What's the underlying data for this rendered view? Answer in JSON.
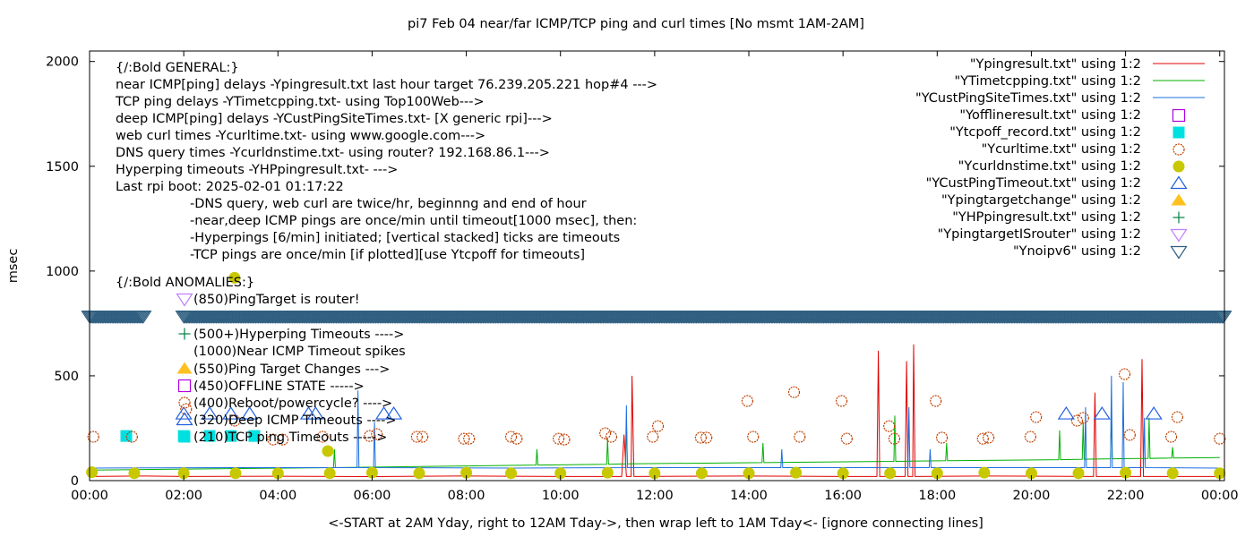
{
  "chart_data": {
    "type": "line",
    "title": "pi7 Feb 04  near/far ICMP/TCP ping and curl times [No msmt 1AM-2AM]",
    "xlabel": "<-START at 2AM Yday, right to 12AM Tday->, then wrap left to 1AM Tday<- [ignore connecting lines]",
    "ylabel": "msec",
    "xlim": [
      0,
      24.1
    ],
    "ylim": [
      0,
      2050
    ],
    "x_unit": "hours of day",
    "xticks": [
      {
        "v": 0,
        "label": "00:00"
      },
      {
        "v": 2,
        "label": "02:00"
      },
      {
        "v": 4,
        "label": "04:00"
      },
      {
        "v": 6,
        "label": "06:00"
      },
      {
        "v": 8,
        "label": "08:00"
      },
      {
        "v": 10,
        "label": "10:00"
      },
      {
        "v": 12,
        "label": "12:00"
      },
      {
        "v": 14,
        "label": "14:00"
      },
      {
        "v": 16,
        "label": "16:00"
      },
      {
        "v": 18,
        "label": "18:00"
      },
      {
        "v": 20,
        "label": "20:00"
      },
      {
        "v": 22,
        "label": "22:00"
      },
      {
        "v": 24,
        "label": "00:00"
      }
    ],
    "yticks": [
      {
        "v": 0,
        "label": "0"
      },
      {
        "v": 500,
        "label": "500"
      },
      {
        "v": 1000,
        "label": "1000"
      },
      {
        "v": 1500,
        "label": "1500"
      },
      {
        "v": 2000,
        "label": "2000"
      }
    ],
    "grid": false,
    "legend_placement": "top-right",
    "series": [
      {
        "name": "\"Ypingresult.txt\" using 1:2",
        "style": "line",
        "color": "#e00000",
        "points": [
          [
            0,
            20
          ],
          [
            1.2,
            22
          ],
          [
            2,
            20
          ],
          [
            4,
            21
          ],
          [
            6,
            19
          ],
          [
            8,
            22
          ],
          [
            10,
            20
          ],
          [
            11.3,
            20
          ],
          [
            11.35,
            220
          ],
          [
            11.4,
            20
          ],
          [
            11.5,
            20
          ],
          [
            11.52,
            500
          ],
          [
            11.56,
            20
          ],
          [
            14,
            22
          ],
          [
            16,
            20
          ],
          [
            16.72,
            20
          ],
          [
            16.75,
            620
          ],
          [
            16.78,
            20
          ],
          [
            17.32,
            20
          ],
          [
            17.35,
            570
          ],
          [
            17.38,
            20
          ],
          [
            17.48,
            20
          ],
          [
            17.5,
            650
          ],
          [
            17.53,
            20
          ],
          [
            19,
            22
          ],
          [
            21.32,
            20
          ],
          [
            21.35,
            420
          ],
          [
            21.38,
            20
          ],
          [
            22.32,
            20
          ],
          [
            22.35,
            580
          ],
          [
            22.38,
            20
          ],
          [
            24,
            20
          ]
        ]
      },
      {
        "name": "\"YTimetcpping.txt\" using 1:2",
        "style": "line",
        "color": "#00b000",
        "points": [
          [
            0,
            50
          ],
          [
            2,
            55
          ],
          [
            5.18,
            62
          ],
          [
            5.2,
            150
          ],
          [
            5.22,
            62
          ],
          [
            8,
            70
          ],
          [
            9.48,
            74
          ],
          [
            9.5,
            150
          ],
          [
            9.52,
            74
          ],
          [
            10.98,
            78
          ],
          [
            11.0,
            200
          ],
          [
            11.02,
            78
          ],
          [
            11.38,
            80
          ],
          [
            11.4,
            280
          ],
          [
            11.42,
            80
          ],
          [
            14.28,
            86
          ],
          [
            14.3,
            180
          ],
          [
            14.32,
            86
          ],
          [
            17.08,
            92
          ],
          [
            17.1,
            310
          ],
          [
            17.12,
            92
          ],
          [
            18.18,
            95
          ],
          [
            18.2,
            180
          ],
          [
            18.22,
            95
          ],
          [
            20.58,
            100
          ],
          [
            20.6,
            240
          ],
          [
            20.62,
            100
          ],
          [
            21.08,
            102
          ],
          [
            21.1,
            280
          ],
          [
            21.12,
            102
          ],
          [
            21.68,
            104
          ],
          [
            21.7,
            310
          ],
          [
            21.72,
            104
          ],
          [
            22.48,
            106
          ],
          [
            22.5,
            300
          ],
          [
            22.52,
            106
          ],
          [
            22.98,
            108
          ],
          [
            23.0,
            160
          ],
          [
            23.02,
            108
          ],
          [
            24,
            110
          ]
        ]
      },
      {
        "name": "\"YCustPingSiteTimes.txt\" using 1:2",
        "style": "line",
        "color": "#1f6fe0",
        "points": [
          [
            0,
            60
          ],
          [
            3,
            62
          ],
          [
            5.68,
            62
          ],
          [
            5.7,
            430
          ],
          [
            5.72,
            62
          ],
          [
            6.03,
            62
          ],
          [
            6.05,
            280
          ],
          [
            6.07,
            62
          ],
          [
            9,
            60
          ],
          [
            11.38,
            62
          ],
          [
            11.4,
            360
          ],
          [
            11.42,
            62
          ],
          [
            14.68,
            62
          ],
          [
            14.7,
            150
          ],
          [
            14.72,
            62
          ],
          [
            17.38,
            62
          ],
          [
            17.4,
            350
          ],
          [
            17.42,
            62
          ],
          [
            17.83,
            62
          ],
          [
            17.85,
            150
          ],
          [
            17.87,
            62
          ],
          [
            21.13,
            62
          ],
          [
            21.15,
            350
          ],
          [
            21.17,
            62
          ],
          [
            21.68,
            62
          ],
          [
            21.7,
            500
          ],
          [
            21.72,
            62
          ],
          [
            21.93,
            62
          ],
          [
            21.95,
            470
          ],
          [
            21.97,
            62
          ],
          [
            22.38,
            62
          ],
          [
            22.4,
            300
          ],
          [
            22.42,
            62
          ],
          [
            24,
            60
          ]
        ]
      },
      {
        "name": "\"Yofflineresult.txt\" using 1:2",
        "style": "open-square",
        "color": "#b000e0",
        "points": []
      },
      {
        "name": "\"Ytcpoff_record.txt\" using 1:2",
        "style": "filled-square",
        "color": "#00e0e0",
        "points": [
          [
            0.78,
            213
          ],
          [
            2.0,
            213
          ],
          [
            2.55,
            213
          ],
          [
            3.0,
            213
          ],
          [
            3.5,
            213
          ]
        ]
      },
      {
        "name": "\"Ycurltime.txt\" using 1:2",
        "style": "open-circle",
        "color": "#c04000",
        "points": [
          [
            0.08,
            209
          ],
          [
            0.9,
            209
          ],
          [
            2.05,
            341
          ],
          [
            3.08,
            286
          ],
          [
            3.9,
            196
          ],
          [
            4.1,
            196
          ],
          [
            4.95,
            209
          ],
          [
            5.95,
            213
          ],
          [
            6.1,
            222
          ],
          [
            6.95,
            209
          ],
          [
            7.07,
            209
          ],
          [
            7.95,
            200
          ],
          [
            8.06,
            200
          ],
          [
            8.95,
            209
          ],
          [
            9.07,
            200
          ],
          [
            9.96,
            200
          ],
          [
            10.08,
            196
          ],
          [
            10.95,
            226
          ],
          [
            11.08,
            209
          ],
          [
            11.96,
            209
          ],
          [
            12.07,
            260
          ],
          [
            12.98,
            205
          ],
          [
            13.1,
            205
          ],
          [
            13.97,
            380
          ],
          [
            14.09,
            209
          ],
          [
            14.96,
            422
          ],
          [
            15.08,
            209
          ],
          [
            15.97,
            380
          ],
          [
            16.08,
            200
          ],
          [
            16.98,
            260
          ],
          [
            17.09,
            200
          ],
          [
            17.97,
            380
          ],
          [
            18.1,
            205
          ],
          [
            18.97,
            200
          ],
          [
            19.09,
            205
          ],
          [
            19.98,
            209
          ],
          [
            20.1,
            303
          ],
          [
            20.97,
            286
          ],
          [
            21.1,
            299
          ],
          [
            21.98,
            508
          ],
          [
            22.09,
            218
          ],
          [
            22.97,
            209
          ],
          [
            23.1,
            303
          ],
          [
            24.0,
            200
          ]
        ]
      },
      {
        "name": "\"Ycurldnstime.txt\" using 1:2",
        "style": "filled-circle",
        "color": "#c8c800",
        "points": [
          [
            0.05,
            40
          ],
          [
            0.95,
            35
          ],
          [
            2.0,
            35
          ],
          [
            3.08,
            968
          ],
          [
            3.1,
            35
          ],
          [
            4.0,
            35
          ],
          [
            5.06,
            141
          ],
          [
            5.1,
            35
          ],
          [
            6.0,
            38
          ],
          [
            7.0,
            35
          ],
          [
            8.0,
            38
          ],
          [
            8.95,
            35
          ],
          [
            10.0,
            35
          ],
          [
            11.0,
            38
          ],
          [
            12.0,
            35
          ],
          [
            13.0,
            35
          ],
          [
            14.0,
            35
          ],
          [
            15.0,
            38
          ],
          [
            16.0,
            35
          ],
          [
            17.0,
            35
          ],
          [
            18.0,
            35
          ],
          [
            19.0,
            38
          ],
          [
            20.0,
            35
          ],
          [
            21.0,
            35
          ],
          [
            22.0,
            38
          ],
          [
            23.0,
            35
          ],
          [
            24.0,
            35
          ]
        ]
      },
      {
        "name": "\"YCustPingTimeout.txt\" using 1:2",
        "style": "open-triangle-up",
        "color": "#2060e0",
        "points": [
          [
            2.0,
            318
          ],
          [
            2.55,
            318
          ],
          [
            3.0,
            318
          ],
          [
            3.4,
            318
          ],
          [
            4.65,
            318
          ],
          [
            4.8,
            318
          ],
          [
            6.25,
            318
          ],
          [
            6.46,
            318
          ],
          [
            20.74,
            318
          ],
          [
            21.5,
            318
          ],
          [
            22.6,
            318
          ]
        ]
      },
      {
        "name": "\"Ypingtargetchange\" using 1:2",
        "style": "filled-triangle-up",
        "color": "#ffc020",
        "points": []
      },
      {
        "name": "\"YHPpingresult.txt\" using 1:2",
        "style": "plus",
        "color": "#008040",
        "points": []
      },
      {
        "name": "\"YpingtargetISrouter\" using 1:2",
        "style": "open-triangle-down",
        "color": "#c080ff",
        "points": []
      },
      {
        "name": "\"Ynoipv6\" using 1:2",
        "style": "open-triangle-down",
        "color": "#2e5e80",
        "value": 785,
        "ranges": [
          [
            0,
            1.15
          ],
          [
            2.0,
            24.1
          ]
        ]
      }
    ],
    "annotations": {
      "general": [
        "{/:Bold GENERAL:}",
        "near ICMP[ping] delays -Ypingresult.txt last hour target 76.239.205.221 hop#4 --->",
        "TCP ping delays -YTimetcpping.txt- using Top100Web--->",
        "deep ICMP[ping] delays -YCustPingSiteTimes.txt- [X generic rpi]--->",
        "web curl times -Ycurltime.txt- using www.google.com--->",
        "DNS query times -Ycurldnstime.txt- using router? 192.168.86.1--->",
        "Hyperping timeouts -YHPpingresult.txt- --->",
        "Last rpi boot: 2025-02-01 01:17:22"
      ],
      "notes": [
        "-DNS query, web curl are twice/hr, beginnng and end of hour",
        "-near,deep ICMP pings are once/min until timeout[1000 msec], then:",
        "  -Hyperpings [6/min] initiated; [vertical stacked] ticks are timeouts",
        "-TCP pings are once/min [if plotted][use Ytcpoff for timeouts]"
      ],
      "anomalies_title": "{/:Bold ANOMALIES:}",
      "anomalies": [
        {
          "text": "(850)PingTarget is router!",
          "marker": "open-triangle-down",
          "color": "#c080ff"
        },
        {
          "text": "(500+)Hyperping Timeouts ---->",
          "marker": "plus",
          "color": "#008040"
        },
        {
          "text": "(1000)Near ICMP Timeout spikes",
          "marker": "",
          "color": ""
        },
        {
          "text": "(550)Ping Target Changes --->",
          "marker": "filled-triangle-up",
          "color": "#ffc020"
        },
        {
          "text": "(450)OFFLINE STATE ----->",
          "marker": "open-square",
          "color": "#b000e0"
        },
        {
          "text": "(400)Reboot/powercycle? ---->",
          "marker": "open-circle",
          "color": "#c04000"
        },
        {
          "text": "(320)Deep ICMP Timeouts ---->",
          "marker": "open-triangle-up",
          "color": "#2060e0"
        },
        {
          "text": "(210)TCP ping Timeouts ----->",
          "marker": "filled-square",
          "color": "#00e0e0"
        }
      ]
    }
  }
}
